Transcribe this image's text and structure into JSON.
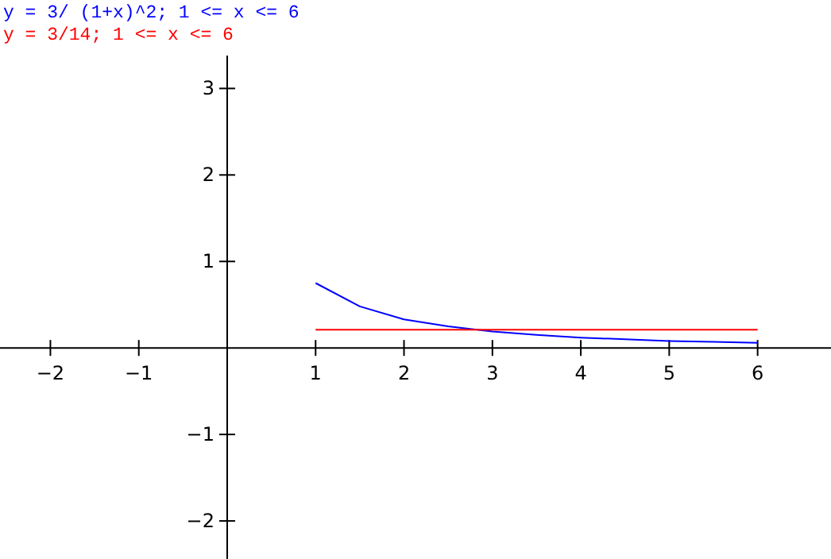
{
  "chart_data": {
    "type": "line",
    "x": [
      1,
      1.5,
      2,
      2.5,
      3,
      3.5,
      4,
      4.5,
      5,
      5.5,
      6
    ],
    "series": [
      {
        "name": "y = 3/ (1+x)^2; 1 <= x <= 6",
        "color": "#0000ff",
        "values": [
          0.75,
          0.48,
          0.33,
          0.25,
          0.19,
          0.15,
          0.12,
          0.1,
          0.08,
          0.07,
          0.06
        ]
      },
      {
        "name": "y = 3/14; 1 <= x <= 6",
        "color": "#ff0000",
        "x": [
          1,
          6
        ],
        "values": [
          0.21,
          0.21
        ]
      }
    ],
    "xlim": [
      -2.57,
      6.83
    ],
    "ylim": [
      -2.44,
      3.38
    ],
    "xticks": [
      -2,
      -1,
      1,
      2,
      3,
      4,
      5,
      6
    ],
    "yticks": [
      -2,
      -1,
      1,
      2,
      3
    ],
    "legend": "top left",
    "grid": false,
    "marker": "none",
    "line_style": "solid"
  }
}
